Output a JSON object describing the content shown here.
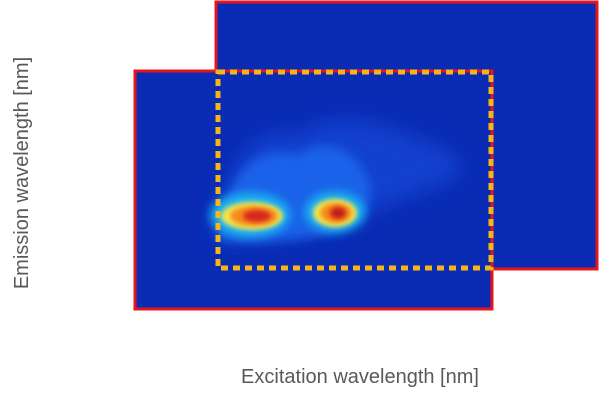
{
  "axis_labels": {
    "y": "Emission wavelength [nm]",
    "x": "Excitation wavelength [nm]"
  },
  "colors": {
    "background_map": "#0a2bb4",
    "frame_border": "#e8141c",
    "roi_dashed": "#f6b618",
    "label_text": "#595959"
  }
}
